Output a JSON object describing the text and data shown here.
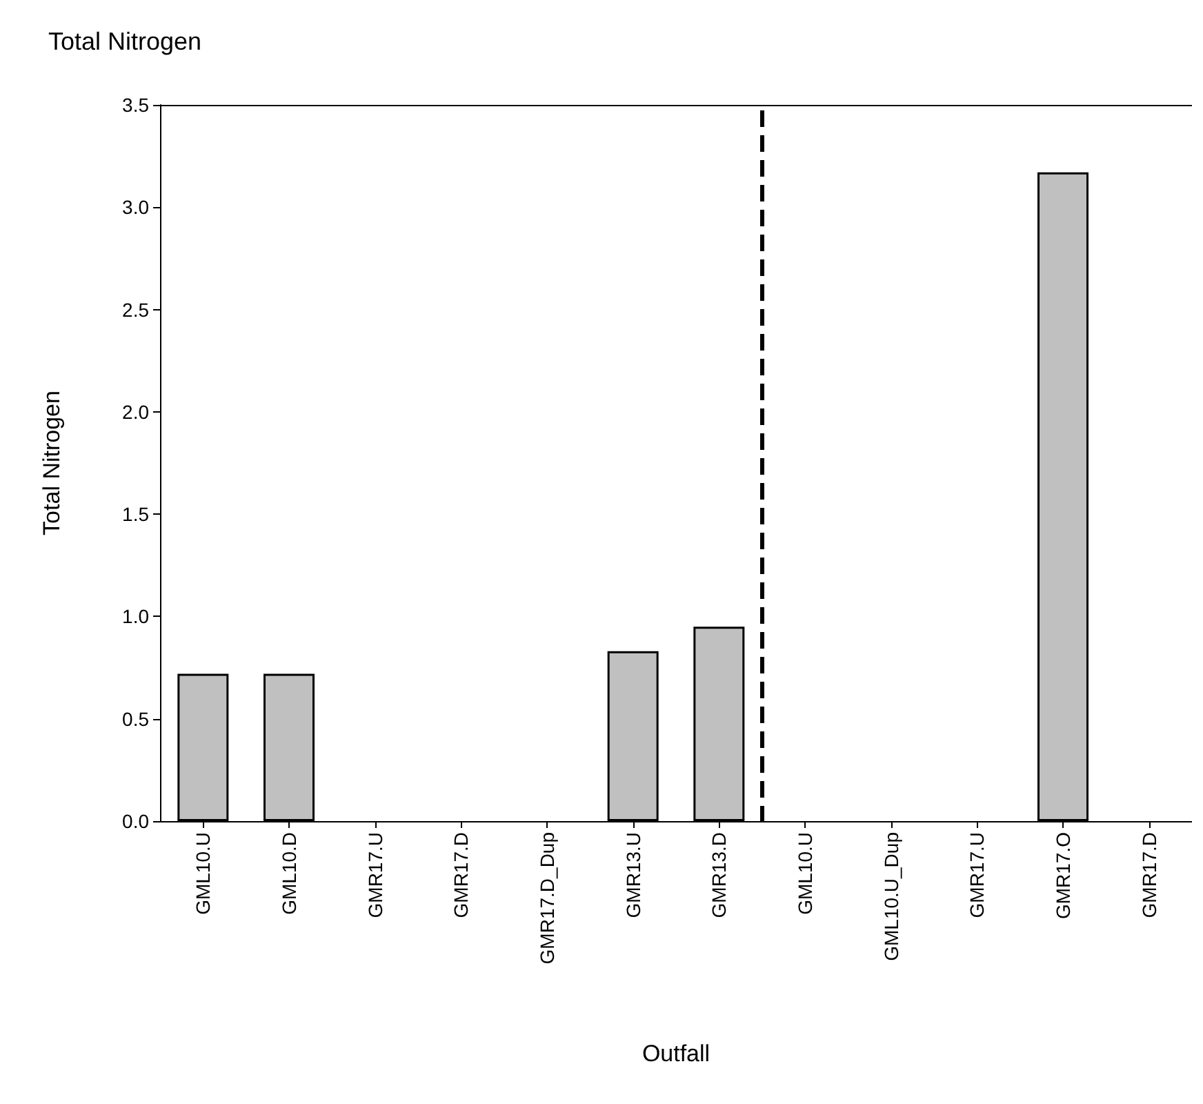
{
  "chart_data": {
    "type": "bar",
    "title": "Total Nitrogen",
    "xlabel": "Outfall",
    "ylabel": "Total Nitrogen",
    "categories": [
      "GML10.U",
      "GML10.D",
      "GMR17.U",
      "GMR17.D",
      "GMR17.D_Dup",
      "GMR13.U",
      "GMR13.D",
      "GML10.U",
      "GML10.U_Dup",
      "GMR17.U",
      "GMR17.O",
      "GMR17.D"
    ],
    "values": [
      0.72,
      0.72,
      null,
      null,
      null,
      0.83,
      0.95,
      null,
      null,
      null,
      3.17,
      null
    ],
    "color": "#c0c0c0",
    "ylim": [
      0,
      3.5
    ],
    "yticks": [
      {
        "value": 0,
        "label": "0.0"
      },
      {
        "value": 0.5,
        "label": "0.5"
      },
      {
        "value": 1,
        "label": "1.0"
      },
      {
        "value": 1.5,
        "label": "1.5"
      },
      {
        "value": 2,
        "label": "2.0"
      },
      {
        "value": 2.5,
        "label": "2.5"
      },
      {
        "value": 3,
        "label": "3.0"
      },
      {
        "value": 3.5,
        "label": "3.5"
      }
    ],
    "grid": false
  }
}
